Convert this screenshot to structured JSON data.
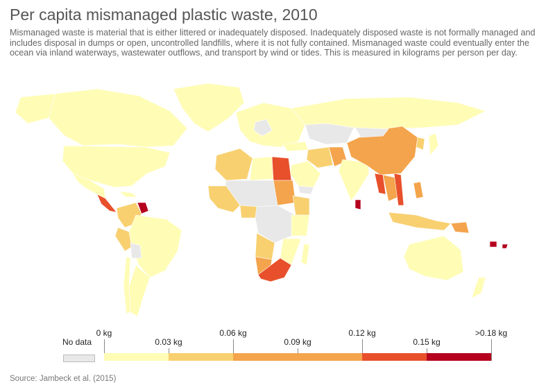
{
  "title": "Per capita mismanaged plastic waste, 2010",
  "subtitle": "Mismanaged waste is material that is either littered or inadequately disposed. Inadequately disposed waste is not formally managed and includes disposal in dumps or open, uncontrolled landfills, where it is not fully contained. Mismanaged waste could eventually enter the ocean via inland waterways, wastewater outflows, and transport by wind or tides. This is measured in kilograms per person per day.",
  "legend": {
    "no_data_label": "No data",
    "no_data_color": "#e8e8e8",
    "bins": [
      {
        "top": "0 kg",
        "bottom": "0.03 kg",
        "color": "#fffcb6"
      },
      {
        "top": "0.06 kg",
        "bottom": "0.09 kg",
        "color": "#f8d070"
      },
      {
        "top": "0.12 kg",
        "bottom": "0.15 kg",
        "color": "#f4a44c"
      },
      {
        "top": ">0.18 kg",
        "color": "#e8502c"
      }
    ],
    "segment_colors": [
      "#fffcb6",
      "#f8d070",
      "#f4a44c",
      "#f4a44c",
      "#e8502c",
      "#b5001e"
    ]
  },
  "source": "Source: Jambeck et al. (2015)"
}
